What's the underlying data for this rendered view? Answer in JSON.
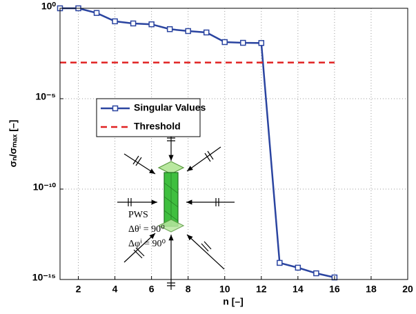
{
  "chart_data": {
    "type": "line",
    "log_y": true,
    "grid": true,
    "x_label": "n   [–]",
    "y_label": "σₙ/σₘₐₓ   [–]",
    "xlim": [
      1,
      20
    ],
    "xticks": [
      2,
      4,
      6,
      8,
      10,
      12,
      14,
      16,
      18,
      20
    ],
    "ylim": [
      1e-15,
      1
    ],
    "yticks": [
      {
        "value": 1,
        "label": "10⁰"
      },
      {
        "value": 1e-05,
        "label": "10⁻⁵"
      },
      {
        "value": 1e-10,
        "label": "10⁻¹⁰"
      },
      {
        "value": 1e-15,
        "label": "10⁻¹⁵"
      }
    ],
    "legend_position": "upper-left",
    "series": [
      {
        "name": "Singular Values",
        "color": "#2a44a0",
        "marker": "square",
        "dash": false,
        "x": [
          1,
          2,
          3,
          4,
          5,
          6,
          7,
          8,
          9,
          10,
          11,
          12,
          13,
          14,
          15,
          16
        ],
        "values": [
          1,
          1,
          0.55,
          0.19,
          0.145,
          0.13,
          0.07,
          0.055,
          0.046,
          0.0135,
          0.0123,
          0.012,
          8.3e-15,
          4.5e-15,
          2.2e-15,
          1.3e-15
        ]
      },
      {
        "name": "Threshold",
        "color": "#e02020",
        "marker": "none",
        "dash": true,
        "x": [
          1,
          16
        ],
        "values": [
          0.001,
          0.001
        ]
      }
    ],
    "annotations": [
      "PWS",
      "Δθⁱ = 90⁰",
      "Δφⁱ = 90⁰"
    ]
  }
}
